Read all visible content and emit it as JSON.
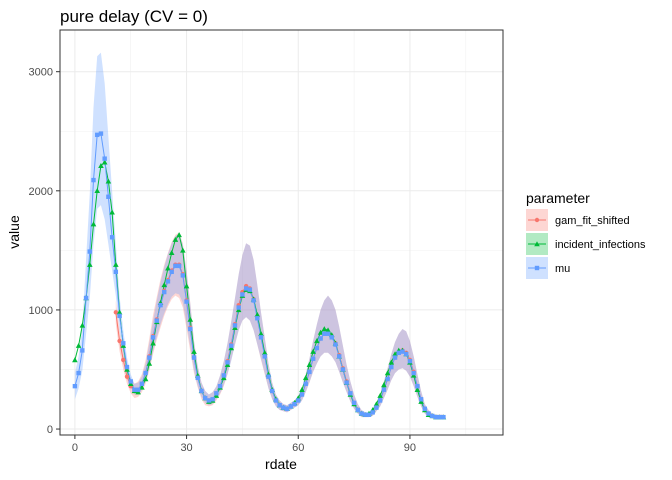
{
  "chart_data": {
    "type": "line",
    "title": "pure delay (CV = 0)",
    "xlabel": "rdate",
    "ylabel": "value",
    "xlim": [
      -4,
      115
    ],
    "ylim": [
      -50,
      3350
    ],
    "xticks": [
      0,
      30,
      60,
      90
    ],
    "yticks": [
      0,
      1000,
      2000,
      3000
    ],
    "grid": true,
    "legend_title": "parameter",
    "legend_position": "right",
    "x": [
      0,
      1,
      2,
      3,
      4,
      5,
      6,
      7,
      8,
      9,
      10,
      11,
      12,
      13,
      14,
      15,
      16,
      17,
      18,
      19,
      20,
      21,
      22,
      23,
      24,
      25,
      26,
      27,
      28,
      29,
      30,
      31,
      32,
      33,
      34,
      35,
      36,
      37,
      38,
      39,
      40,
      41,
      42,
      43,
      44,
      45,
      46,
      47,
      48,
      49,
      50,
      51,
      52,
      53,
      54,
      55,
      56,
      57,
      58,
      59,
      60,
      61,
      62,
      63,
      64,
      65,
      66,
      67,
      68,
      69,
      70,
      71,
      72,
      73,
      74,
      75,
      76,
      77,
      78,
      79,
      80,
      81,
      82,
      83,
      84,
      85,
      86,
      87,
      88,
      89,
      90,
      91,
      92,
      93,
      94,
      95,
      96,
      97,
      98,
      99
    ],
    "series": [
      {
        "name": "gam_fit_shifted",
        "color": "#F8766D",
        "fill": "#F8766D",
        "marker": "circle",
        "values": [
          null,
          null,
          null,
          null,
          null,
          null,
          null,
          null,
          null,
          null,
          null,
          980,
          740,
          580,
          440,
          360,
          320,
          330,
          380,
          470,
          610,
          780,
          920,
          1050,
          1160,
          1250,
          1330,
          1380,
          1380,
          1300,
          1080,
          850,
          600,
          440,
          320,
          260,
          240,
          250,
          300,
          360,
          450,
          570,
          710,
          880,
          1040,
          1150,
          1200,
          1180,
          1090,
          940,
          780,
          620,
          440,
          320,
          240,
          200,
          180,
          170,
          190,
          210,
          240,
          290,
          380,
          480,
          590,
          680,
          760,
          800,
          810,
          780,
          720,
          620,
          510,
          400,
          300,
          220,
          160,
          130,
          120,
          120,
          140,
          180,
          240,
          330,
          420,
          520,
          600,
          640,
          660,
          640,
          580,
          480,
          360,
          250,
          170,
          130,
          110,
          100,
          100,
          100
        ],
        "lower": [
          null,
          null,
          null,
          null,
          null,
          null,
          null,
          null,
          null,
          null,
          null,
          880,
          650,
          500,
          380,
          300,
          260,
          270,
          310,
          380,
          490,
          630,
          750,
          850,
          950,
          1030,
          1090,
          1120,
          1100,
          1020,
          840,
          650,
          470,
          350,
          250,
          200,
          190,
          200,
          240,
          290,
          360,
          460,
          580,
          710,
          830,
          910,
          940,
          910,
          830,
          710,
          580,
          460,
          340,
          250,
          190,
          160,
          150,
          140,
          160,
          180,
          200,
          240,
          310,
          390,
          480,
          550,
          610,
          640,
          640,
          610,
          560,
          480,
          390,
          310,
          230,
          170,
          130,
          100,
          100,
          100,
          110,
          150,
          190,
          260,
          330,
          410,
          470,
          500,
          510,
          490,
          440,
          360,
          270,
          190,
          130,
          100,
          90,
          80,
          80,
          80
        ],
        "upper": [
          null,
          null,
          null,
          null,
          null,
          null,
          null,
          null,
          null,
          null,
          null,
          1080,
          830,
          660,
          500,
          420,
          380,
          400,
          460,
          580,
          760,
          960,
          1110,
          1260,
          1380,
          1480,
          1570,
          1630,
          1650,
          1560,
          1330,
          1060,
          740,
          530,
          390,
          320,
          290,
          310,
          360,
          450,
          570,
          720,
          900,
          1100,
          1300,
          1460,
          1560,
          1540,
          1420,
          1210,
          980,
          770,
          550,
          390,
          290,
          240,
          210,
          200,
          220,
          240,
          280,
          340,
          460,
          590,
          740,
          880,
          1000,
          1080,
          1120,
          1080,
          1000,
          860,
          700,
          540,
          400,
          290,
          210,
          160,
          140,
          140,
          170,
          220,
          290,
          400,
          510,
          630,
          730,
          800,
          840,
          820,
          740,
          610,
          460,
          320,
          210,
          160,
          130,
          120,
          120,
          120
        ]
      },
      {
        "name": "incident_infections",
        "color": "#00BA38",
        "fill": "#00BA38",
        "marker": "triangle",
        "values": [
          580,
          700,
          870,
          1100,
          1380,
          1720,
          2000,
          2210,
          2240,
          2080,
          1820,
          1380,
          980,
          700,
          500,
          380,
          320,
          310,
          350,
          420,
          550,
          720,
          900,
          1060,
          1210,
          1350,
          1480,
          1590,
          1630,
          1500,
          1200,
          920,
          650,
          450,
          320,
          260,
          230,
          240,
          280,
          350,
          430,
          540,
          680,
          850,
          1000,
          1120,
          1170,
          1160,
          1090,
          960,
          800,
          640,
          460,
          330,
          250,
          200,
          180,
          170,
          190,
          220,
          260,
          330,
          430,
          540,
          650,
          740,
          810,
          840,
          830,
          790,
          720,
          610,
          500,
          390,
          290,
          210,
          160,
          130,
          120,
          130,
          160,
          210,
          280,
          370,
          470,
          560,
          630,
          660,
          660,
          630,
          560,
          450,
          330,
          230,
          160,
          120,
          110,
          100,
          100,
          100
        ]
      },
      {
        "name": "mu",
        "color": "#619CFF",
        "fill": "#619CFF",
        "marker": "square",
        "values": [
          360,
          470,
          660,
          1100,
          1490,
          2090,
          2470,
          2480,
          2270,
          1950,
          1610,
          1320,
          950,
          720,
          520,
          400,
          330,
          330,
          380,
          470,
          600,
          770,
          910,
          1040,
          1150,
          1240,
          1320,
          1370,
          1370,
          1290,
          1070,
          840,
          600,
          430,
          320,
          260,
          240,
          250,
          300,
          360,
          450,
          560,
          700,
          870,
          1020,
          1130,
          1180,
          1170,
          1080,
          930,
          770,
          610,
          440,
          320,
          240,
          200,
          180,
          170,
          190,
          210,
          240,
          290,
          380,
          480,
          590,
          680,
          760,
          800,
          800,
          770,
          710,
          610,
          500,
          390,
          300,
          220,
          160,
          130,
          120,
          120,
          140,
          180,
          240,
          330,
          420,
          520,
          600,
          640,
          650,
          630,
          570,
          470,
          360,
          250,
          170,
          130,
          110,
          100,
          100,
          100
        ],
        "lower": [
          250,
          340,
          490,
          800,
          1100,
          1550,
          1850,
          1880,
          1760,
          1550,
          1330,
          1120,
          830,
          620,
          450,
          350,
          290,
          290,
          330,
          400,
          510,
          650,
          770,
          880,
          970,
          1050,
          1110,
          1140,
          1130,
          1060,
          880,
          690,
          490,
          360,
          270,
          220,
          200,
          210,
          250,
          300,
          370,
          460,
          570,
          710,
          830,
          910,
          940,
          910,
          830,
          710,
          590,
          470,
          340,
          250,
          190,
          160,
          150,
          140,
          160,
          180,
          200,
          240,
          310,
          390,
          480,
          550,
          610,
          640,
          640,
          610,
          560,
          480,
          390,
          310,
          230,
          170,
          130,
          100,
          100,
          100,
          110,
          150,
          190,
          260,
          330,
          410,
          470,
          500,
          510,
          490,
          440,
          360,
          270,
          190,
          130,
          100,
          90,
          80,
          80,
          80
        ],
        "upper": [
          470,
          610,
          850,
          1430,
          1980,
          2700,
          3130,
          3160,
          2900,
          2450,
          2000,
          1560,
          1110,
          830,
          600,
          460,
          380,
          390,
          440,
          550,
          720,
          910,
          1080,
          1230,
          1360,
          1470,
          1560,
          1620,
          1640,
          1550,
          1320,
          1050,
          740,
          530,
          390,
          320,
          290,
          310,
          360,
          450,
          570,
          720,
          900,
          1100,
          1300,
          1460,
          1560,
          1540,
          1420,
          1210,
          980,
          770,
          550,
          390,
          290,
          240,
          210,
          200,
          220,
          240,
          280,
          340,
          460,
          590,
          740,
          880,
          1000,
          1080,
          1120,
          1080,
          1000,
          860,
          700,
          540,
          400,
          290,
          210,
          160,
          140,
          140,
          170,
          220,
          290,
          400,
          510,
          630,
          730,
          800,
          840,
          820,
          740,
          610,
          460,
          320,
          210,
          160,
          130,
          120,
          120,
          120
        ]
      }
    ]
  }
}
